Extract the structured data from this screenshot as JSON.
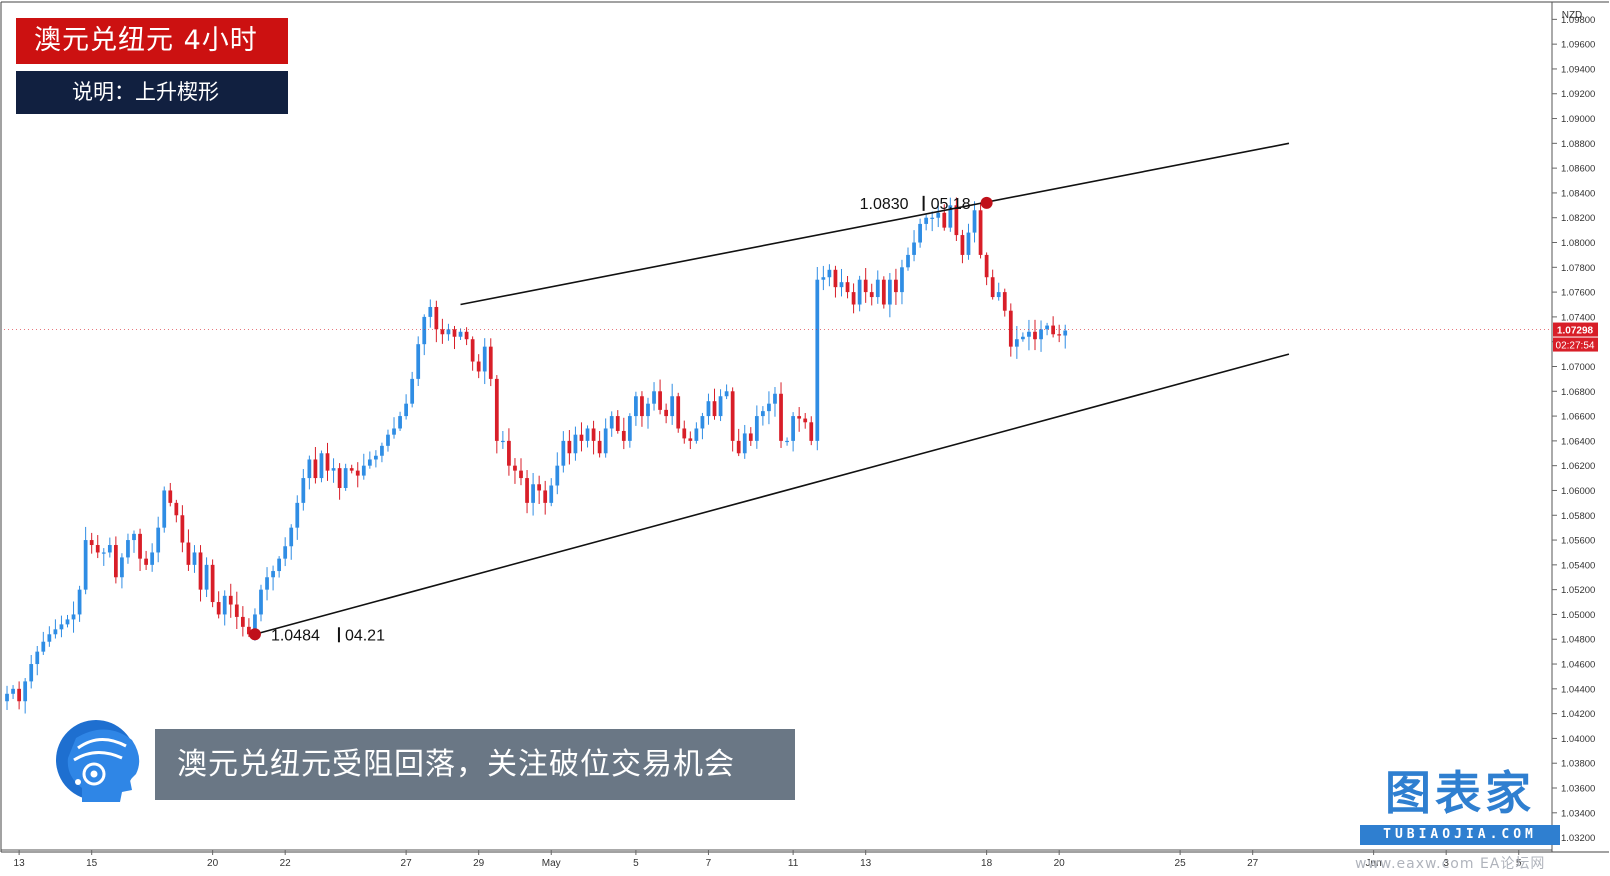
{
  "title": "澳元兑纽元   4小时",
  "subtitle": "说明：上升楔形",
  "caption": "澳元兑纽元受阻回落，关注破位交易机会",
  "logo": {
    "main": "图表家",
    "sub": "TUBIAOJIA.COM"
  },
  "watermark": "www.eaxw.com   EA论坛网",
  "colors": {
    "up": "#2f8de4",
    "down": "#d81e28",
    "line": "#111111",
    "marker": "#c0101a",
    "accent": "#cc1111",
    "dark": "#112040"
  },
  "chart_data": {
    "type": "candlestick",
    "currency": "NZD",
    "ylim": [
      1.031,
      1.0994
    ],
    "y_ticks": [
      "1.03200",
      "1.03400",
      "1.03600",
      "1.03800",
      "1.04000",
      "1.04200",
      "1.04400",
      "1.04600",
      "1.04800",
      "1.05000",
      "1.05200",
      "1.05400",
      "1.05600",
      "1.05800",
      "1.06000",
      "1.06200",
      "1.06400",
      "1.06600",
      "1.06800",
      "1.07000",
      "1.07200",
      "1.07400",
      "1.07600",
      "1.07800",
      "1.08000",
      "1.08200",
      "1.08400",
      "1.08600",
      "1.08800",
      "1.09000",
      "1.09200",
      "1.09400",
      "1.09600",
      "1.09800"
    ],
    "x_ticks": [
      {
        "bar": 2,
        "label": "13"
      },
      {
        "bar": 14,
        "label": "15"
      },
      {
        "bar": 34,
        "label": "20"
      },
      {
        "bar": 46,
        "label": "22"
      },
      {
        "bar": 66,
        "label": "27"
      },
      {
        "bar": 78,
        "label": "29"
      },
      {
        "bar": 90,
        "label": "May"
      },
      {
        "bar": 104,
        "label": "5"
      },
      {
        "bar": 116,
        "label": "7"
      },
      {
        "bar": 130,
        "label": "11"
      },
      {
        "bar": 142,
        "label": "13"
      },
      {
        "bar": 162,
        "label": "18"
      },
      {
        "bar": 174,
        "label": "20"
      },
      {
        "bar": 194,
        "label": "25"
      },
      {
        "bar": 206,
        "label": "27"
      },
      {
        "bar": 226,
        "label": "Jun"
      },
      {
        "bar": 238,
        "label": "3"
      },
      {
        "bar": 250,
        "label": "5"
      }
    ],
    "bars_visible": 256,
    "closes": [
      1.0436,
      1.044,
      1.043,
      1.0446,
      1.046,
      1.047,
      1.0478,
      1.0484,
      1.0488,
      1.0492,
      1.0496,
      1.05,
      1.052,
      1.056,
      1.0556,
      1.055,
      1.055,
      1.0556,
      1.053,
      1.0546,
      1.056,
      1.0565,
      1.0545,
      1.054,
      1.055,
      1.057,
      1.06,
      1.059,
      1.058,
      1.0558,
      1.054,
      1.055,
      1.052,
      1.054,
      1.051,
      1.05,
      1.0515,
      1.0508,
      1.0498,
      1.049,
      1.0484,
      1.05,
      1.052,
      1.053,
      1.0535,
      1.0545,
      1.0555,
      1.057,
      1.059,
      1.061,
      1.0625,
      1.061,
      1.063,
      1.0616,
      1.0618,
      1.0602,
      1.0618,
      1.0616,
      1.0612,
      1.062,
      1.0625,
      1.0628,
      1.0636,
      1.0645,
      1.065,
      1.066,
      1.067,
      1.069,
      1.0718,
      1.074,
      1.0748,
      1.073,
      1.0726,
      1.073,
      1.0724,
      1.0728,
      1.0722,
      1.0704,
      1.0696,
      1.0716,
      1.069,
      1.064,
      1.064,
      1.062,
      1.0616,
      1.061,
      1.059,
      1.0605,
      1.06,
      1.059,
      1.0604,
      1.062,
      1.064,
      1.063,
      1.0645,
      1.064,
      1.065,
      1.064,
      1.063,
      1.065,
      1.066,
      1.0648,
      1.064,
      1.066,
      1.0676,
      1.066,
      1.067,
      1.068,
      1.0665,
      1.066,
      1.0676,
      1.065,
      1.0642,
      1.064,
      1.065,
      1.066,
      1.0672,
      1.066,
      1.0676,
      1.068,
      1.064,
      1.063,
      1.0646,
      1.064,
      1.066,
      1.0664,
      1.067,
      1.0678,
      1.064,
      1.064,
      1.066,
      1.0658,
      1.0655,
      1.064,
      1.077,
      1.0772,
      1.0778,
      1.0764,
      1.0768,
      1.076,
      1.075,
      1.077,
      1.076,
      1.0756,
      1.077,
      1.075,
      1.077,
      1.076,
      1.078,
      1.079,
      1.08,
      1.0815,
      1.082,
      1.082,
      1.0824,
      1.0812,
      1.083,
      1.0806,
      1.079,
      1.0808,
      1.0826,
      1.079,
      1.0772,
      1.0756,
      1.076,
      1.0745,
      1.0716,
      1.0722,
      1.0724,
      1.0728,
      1.0722,
      1.073,
      1.0733,
      1.0726,
      1.0725,
      1.0729
    ],
    "trendlines": [
      {
        "role": "upper",
        "from": {
          "bar": 75,
          "price": 1.075
        },
        "to": {
          "bar": 212,
          "price": 1.088
        }
      },
      {
        "role": "lower",
        "from": {
          "bar": 41,
          "price": 1.0484
        },
        "to": {
          "bar": 212,
          "price": 1.071
        }
      }
    ],
    "markers": [
      {
        "bar": 41,
        "price": 1.0484,
        "value_label": "1.0484",
        "date_label": "04.21",
        "label_side": "right"
      },
      {
        "bar": 162,
        "price": 1.0832,
        "value_label": "1.0830",
        "date_label": "05.18",
        "label_side": "left"
      }
    ],
    "last_price": "1.07298",
    "countdown": "02:27:54"
  }
}
